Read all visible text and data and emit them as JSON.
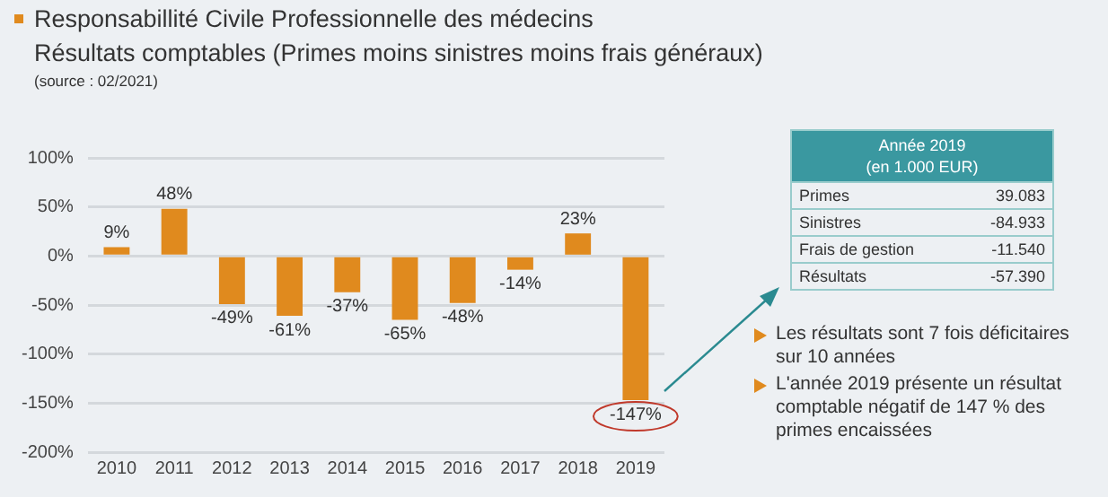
{
  "chart_data": [
    {
      "type": "bar",
      "title": "Responsabillité Civile Professionnelle des médecins",
      "subtitle": "Résultats comptables (Primes moins sinistres moins frais généraux)",
      "annotations": [
        "(source : 02/2021)"
      ],
      "categories": [
        "2010",
        "2011",
        "2012",
        "2013",
        "2014",
        "2015",
        "2016",
        "2017",
        "2018",
        "2019"
      ],
      "values": [
        9,
        48,
        -49,
        -61,
        -37,
        -65,
        -48,
        -14,
        23,
        -147
      ],
      "value_labels": [
        "9%",
        "48%",
        "-49%",
        "-61%",
        "-37%",
        "-65%",
        "-48%",
        "-14%",
        "23%",
        "-147%"
      ],
      "color": "#e08a1e",
      "ylim": [
        -200,
        100
      ],
      "yticks": [
        {
          "value": -200,
          "label": "-200%"
        },
        {
          "value": -150,
          "label": "-150%"
        },
        {
          "value": -100,
          "label": "-100%"
        },
        {
          "value": -50,
          "label": "-50%"
        },
        {
          "value": 0,
          "label": "0%"
        },
        {
          "value": 50,
          "label": "50%"
        },
        {
          "value": 100,
          "label": "100%"
        }
      ],
      "grid": "y",
      "legend": false
    },
    {
      "type": "other",
      "title": "Année 2019",
      "subtitle": "(en 1.000 EUR)",
      "categories": [
        "Primes",
        "Sinistres",
        "Frais de gestion",
        "Résultats"
      ],
      "values": [
        39083,
        -84933,
        -11540,
        -57390
      ],
      "value_labels": [
        "39.083",
        "-84.933",
        "-11.540",
        "-57.390"
      ],
      "annotations": [
        "Les résultats sont 7 fois déficitaires sur 10 années",
        "L'année 2019 présente un résultat comptable négatif de 147 % des primes encaissées"
      ]
    }
  ]
}
